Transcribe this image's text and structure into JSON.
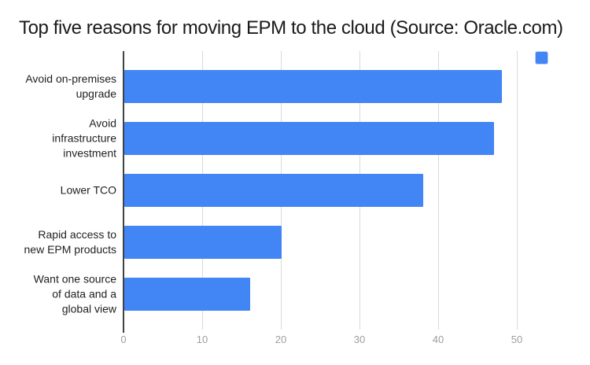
{
  "chart_data": {
    "type": "bar",
    "orientation": "horizontal",
    "title": "Top five reasons for moving EPM to the cloud (Source: Oracle.com)",
    "categories": [
      "Avoid on-premises\nupgrade",
      "Avoid\ninfrastructure\ninvestment",
      "Lower TCO",
      "Rapid access to\nnew EPM products",
      "Want one source\nof data and a\nglobal view"
    ],
    "values": [
      48,
      47,
      38,
      20,
      16
    ],
    "x_ticks": [
      0,
      10,
      20,
      30,
      40,
      50
    ],
    "xlim": [
      0,
      51.5
    ],
    "xlabel": "",
    "ylabel": "",
    "grid": true,
    "legend_position": "top-right",
    "legend_labels": [
      ""
    ],
    "bar_color": "#4285f4",
    "gridline_color": "#d9d9d9",
    "axis_line_color": "#424242",
    "tick_label_color": "#9e9e9e",
    "title_color": "#1a1a1a",
    "category_label_color": "#1f1f1f",
    "background_color": "#ffffff"
  }
}
